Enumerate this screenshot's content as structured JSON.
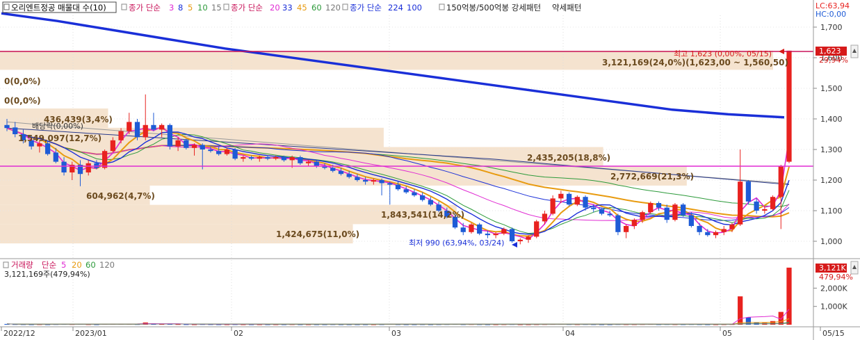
{
  "legend_top": {
    "item1": "오리엔트정공 매물대 수(10)",
    "item2_label": "종가 단순",
    "item2_periods": [
      "3",
      "8",
      "5",
      "10",
      "15"
    ],
    "item3_label": "종가 단순",
    "item3_periods": [
      "20",
      "33",
      "45",
      "60",
      "120"
    ],
    "item4_label": "종가 단순",
    "item4_periods": [
      "224",
      "100"
    ],
    "item5": "150억봉/500억봉 강세패턴",
    "item6": "약세패턴"
  },
  "top_right": {
    "lc": "LC:63,94",
    "hc": "HC:0,00"
  },
  "right_badge": {
    "price": "1,623",
    "pct": "29,94%"
  },
  "annotations": {
    "high": "최고 1,623 (0,00%, 05/15)",
    "low": "최저 990 (63,94%, 03/24)",
    "dividend": "배당락(0,00%)"
  },
  "volume_profile_labels": [
    "3,121,169(24,0%)(1,623,00 ~ 1,560,50)",
    "0(0,0%)",
    "0(0,0%)",
    "436,439(3,4%)",
    "1,549,097(12,7%)",
    "2,435,205(18,8%)",
    "2,772,669(21,3%)",
    "604,962(4,7%)",
    "1,843,541(14,2%)",
    "1,424,675(11,0%)"
  ],
  "volume_legend": {
    "title": "거래량",
    "label": "단순",
    "periods": [
      "5",
      "20",
      "60",
      "120"
    ],
    "value": "3,121,169주(479,94%)"
  },
  "volume_badge": {
    "value": "3,121K",
    "pct": "479,94%"
  },
  "x_labels": [
    "2022/12",
    "2023/01",
    "02",
    "03",
    "04",
    "05",
    "05/15"
  ],
  "colors": {
    "up": "#e8221f",
    "down": "#1e5bd6",
    "ma224": "#1a2fd8",
    "resistance": "#c8145a",
    "support": "#e02cd3",
    "profile": "#f5e3cf",
    "axis_text": "#333333"
  },
  "chart_data": {
    "type": "candlestick",
    "price_axis": {
      "ticks": [
        1000,
        1100,
        1200,
        1300,
        1400,
        1500,
        1600,
        1700
      ],
      "labels": [
        "1,000",
        "1,100",
        "1,200",
        "1,300",
        "1,400",
        "1,500",
        "1,600",
        "1,700"
      ],
      "ylim": [
        955,
        1755
      ]
    },
    "volume_axis": {
      "ticks": [
        1000,
        2000
      ],
      "labels": [
        "1,000K",
        "2,000K"
      ],
      "unit": "K"
    },
    "resistance_level": 1623,
    "support_level": 1245,
    "ma224_series": [
      1745,
      1720,
      1690,
      1660,
      1630,
      1605,
      1580,
      1555,
      1530,
      1505,
      1480,
      1455,
      1430,
      1415,
      1405
    ],
    "volume_profile": [
      {
        "low": 1560.5,
        "high": 1623,
        "vol": 3121169
      },
      {
        "low": 1497,
        "high": 1560,
        "vol": 0
      },
      {
        "low": 1434,
        "high": 1497,
        "vol": 0
      },
      {
        "low": 1371,
        "high": 1434,
        "vol": 436439
      },
      {
        "low": 1308,
        "high": 1371,
        "vol": 1549097
      },
      {
        "low": 1245,
        "high": 1308,
        "vol": 2435205
      },
      {
        "low": 1182,
        "high": 1245,
        "vol": 2772669
      },
      {
        "low": 1119,
        "high": 1182,
        "vol": 604962
      },
      {
        "low": 1056,
        "high": 1119,
        "vol": 1843541
      },
      {
        "low": 993,
        "high": 1056,
        "vol": 1424675
      }
    ],
    "candles": [
      {
        "o": 1380,
        "h": 1400,
        "l": 1360,
        "c": 1370
      },
      {
        "o": 1372,
        "h": 1390,
        "l": 1340,
        "c": 1350
      },
      {
        "o": 1350,
        "h": 1365,
        "l": 1320,
        "c": 1330
      },
      {
        "o": 1330,
        "h": 1345,
        "l": 1300,
        "c": 1310
      },
      {
        "o": 1310,
        "h": 1330,
        "l": 1290,
        "c": 1320
      },
      {
        "o": 1320,
        "h": 1330,
        "l": 1280,
        "c": 1285
      },
      {
        "o": 1290,
        "h": 1305,
        "l": 1255,
        "c": 1260
      },
      {
        "o": 1260,
        "h": 1275,
        "l": 1215,
        "c": 1225
      },
      {
        "o": 1225,
        "h": 1260,
        "l": 1200,
        "c": 1250
      },
      {
        "o": 1250,
        "h": 1265,
        "l": 1180,
        "c": 1220
      },
      {
        "o": 1225,
        "h": 1265,
        "l": 1215,
        "c": 1255
      },
      {
        "o": 1255,
        "h": 1265,
        "l": 1235,
        "c": 1240
      },
      {
        "o": 1240,
        "h": 1300,
        "l": 1235,
        "c": 1295
      },
      {
        "o": 1295,
        "h": 1340,
        "l": 1290,
        "c": 1330
      },
      {
        "o": 1330,
        "h": 1370,
        "l": 1320,
        "c": 1360
      },
      {
        "o": 1360,
        "h": 1420,
        "l": 1350,
        "c": 1390
      },
      {
        "o": 1390,
        "h": 1400,
        "l": 1330,
        "c": 1340
      },
      {
        "o": 1340,
        "h": 1480,
        "l": 1330,
        "c": 1380
      },
      {
        "o": 1380,
        "h": 1420,
        "l": 1360,
        "c": 1365
      },
      {
        "o": 1365,
        "h": 1385,
        "l": 1340,
        "c": 1380
      },
      {
        "o": 1380,
        "h": 1385,
        "l": 1300,
        "c": 1310
      },
      {
        "o": 1310,
        "h": 1340,
        "l": 1295,
        "c": 1330
      },
      {
        "o": 1330,
        "h": 1335,
        "l": 1300,
        "c": 1305
      },
      {
        "o": 1305,
        "h": 1320,
        "l": 1280,
        "c": 1315
      },
      {
        "o": 1315,
        "h": 1320,
        "l": 1235,
        "c": 1300
      },
      {
        "o": 1300,
        "h": 1310,
        "l": 1290,
        "c": 1295
      },
      {
        "o": 1295,
        "h": 1310,
        "l": 1280,
        "c": 1285
      },
      {
        "o": 1285,
        "h": 1305,
        "l": 1280,
        "c": 1300
      },
      {
        "o": 1300,
        "h": 1305,
        "l": 1265,
        "c": 1270
      },
      {
        "o": 1270,
        "h": 1280,
        "l": 1260,
        "c": 1275
      },
      {
        "o": 1275,
        "h": 1280,
        "l": 1265,
        "c": 1270
      },
      {
        "o": 1270,
        "h": 1280,
        "l": 1260,
        "c": 1275
      },
      {
        "o": 1275,
        "h": 1280,
        "l": 1265,
        "c": 1270
      },
      {
        "o": 1270,
        "h": 1280,
        "l": 1265,
        "c": 1275
      },
      {
        "o": 1275,
        "h": 1280,
        "l": 1260,
        "c": 1265
      },
      {
        "o": 1265,
        "h": 1280,
        "l": 1240,
        "c": 1275
      },
      {
        "o": 1275,
        "h": 1280,
        "l": 1250,
        "c": 1255
      },
      {
        "o": 1255,
        "h": 1265,
        "l": 1245,
        "c": 1260
      },
      {
        "o": 1260,
        "h": 1265,
        "l": 1240,
        "c": 1245
      },
      {
        "o": 1245,
        "h": 1255,
        "l": 1235,
        "c": 1240
      },
      {
        "o": 1240,
        "h": 1250,
        "l": 1225,
        "c": 1230
      },
      {
        "o": 1230,
        "h": 1240,
        "l": 1215,
        "c": 1220
      },
      {
        "o": 1220,
        "h": 1230,
        "l": 1205,
        "c": 1210
      },
      {
        "o": 1210,
        "h": 1220,
        "l": 1195,
        "c": 1200
      },
      {
        "o": 1200,
        "h": 1210,
        "l": 1185,
        "c": 1195
      },
      {
        "o": 1195,
        "h": 1205,
        "l": 1185,
        "c": 1200
      },
      {
        "o": 1200,
        "h": 1205,
        "l": 1150,
        "c": 1190
      },
      {
        "o": 1190,
        "h": 1195,
        "l": 1120,
        "c": 1185
      },
      {
        "o": 1185,
        "h": 1195,
        "l": 1165,
        "c": 1170
      },
      {
        "o": 1170,
        "h": 1180,
        "l": 1155,
        "c": 1160
      },
      {
        "o": 1160,
        "h": 1170,
        "l": 1145,
        "c": 1150
      },
      {
        "o": 1150,
        "h": 1160,
        "l": 1130,
        "c": 1135
      },
      {
        "o": 1135,
        "h": 1145,
        "l": 1115,
        "c": 1120
      },
      {
        "o": 1120,
        "h": 1130,
        "l": 1095,
        "c": 1100
      },
      {
        "o": 1100,
        "h": 1110,
        "l": 1075,
        "c": 1080
      },
      {
        "o": 1080,
        "h": 1090,
        "l": 1040,
        "c": 1045
      },
      {
        "o": 1045,
        "h": 1060,
        "l": 1020,
        "c": 1030
      },
      {
        "o": 1030,
        "h": 1060,
        "l": 1025,
        "c": 1055
      },
      {
        "o": 1055,
        "h": 1060,
        "l": 1020,
        "c": 1025
      },
      {
        "o": 1025,
        "h": 1035,
        "l": 1010,
        "c": 1020
      },
      {
        "o": 1020,
        "h": 1030,
        "l": 1010,
        "c": 1025
      },
      {
        "o": 1025,
        "h": 1045,
        "l": 1020,
        "c": 1040
      },
      {
        "o": 1040,
        "h": 1045,
        "l": 995,
        "c": 1000
      },
      {
        "o": 1000,
        "h": 1010,
        "l": 990,
        "c": 1005
      },
      {
        "o": 1005,
        "h": 1020,
        "l": 995,
        "c": 1015
      },
      {
        "o": 1015,
        "h": 1070,
        "l": 1010,
        "c": 1065
      },
      {
        "o": 1065,
        "h": 1100,
        "l": 1055,
        "c": 1090
      },
      {
        "o": 1090,
        "h": 1150,
        "l": 1085,
        "c": 1140
      },
      {
        "o": 1140,
        "h": 1165,
        "l": 1125,
        "c": 1155
      },
      {
        "o": 1155,
        "h": 1160,
        "l": 1115,
        "c": 1120
      },
      {
        "o": 1120,
        "h": 1150,
        "l": 1115,
        "c": 1145
      },
      {
        "o": 1145,
        "h": 1150,
        "l": 1100,
        "c": 1110
      },
      {
        "o": 1110,
        "h": 1120,
        "l": 1095,
        "c": 1105
      },
      {
        "o": 1105,
        "h": 1110,
        "l": 1085,
        "c": 1090
      },
      {
        "o": 1090,
        "h": 1100,
        "l": 1080,
        "c": 1085
      },
      {
        "o": 1085,
        "h": 1090,
        "l": 1020,
        "c": 1030
      },
      {
        "o": 1030,
        "h": 1055,
        "l": 1010,
        "c": 1050
      },
      {
        "o": 1050,
        "h": 1075,
        "l": 1040,
        "c": 1070
      },
      {
        "o": 1070,
        "h": 1100,
        "l": 1060,
        "c": 1095
      },
      {
        "o": 1095,
        "h": 1130,
        "l": 1090,
        "c": 1125
      },
      {
        "o": 1125,
        "h": 1130,
        "l": 1100,
        "c": 1110
      },
      {
        "o": 1110,
        "h": 1120,
        "l": 1060,
        "c": 1070
      },
      {
        "o": 1070,
        "h": 1125,
        "l": 1065,
        "c": 1120
      },
      {
        "o": 1120,
        "h": 1125,
        "l": 1080,
        "c": 1085
      },
      {
        "o": 1085,
        "h": 1095,
        "l": 1045,
        "c": 1050
      },
      {
        "o": 1050,
        "h": 1060,
        "l": 1020,
        "c": 1030
      },
      {
        "o": 1030,
        "h": 1040,
        "l": 1015,
        "c": 1020
      },
      {
        "o": 1020,
        "h": 1035,
        "l": 1010,
        "c": 1030
      },
      {
        "o": 1030,
        "h": 1050,
        "l": 1020,
        "c": 1040
      },
      {
        "o": 1040,
        "h": 1060,
        "l": 1030,
        "c": 1055
      },
      {
        "o": 1055,
        "h": 1300,
        "l": 1050,
        "c": 1195
      },
      {
        "o": 1195,
        "h": 1200,
        "l": 1120,
        "c": 1130
      },
      {
        "o": 1130,
        "h": 1140,
        "l": 1090,
        "c": 1100
      },
      {
        "o": 1100,
        "h": 1115,
        "l": 1090,
        "c": 1105
      },
      {
        "o": 1105,
        "h": 1150,
        "l": 1100,
        "c": 1145
      },
      {
        "o": 1145,
        "h": 1250,
        "l": 1040,
        "c": 1245
      },
      {
        "o": 1260,
        "h": 1623,
        "l": 1255,
        "c": 1623
      }
    ],
    "volume_k": [
      40,
      30,
      25,
      20,
      25,
      20,
      30,
      35,
      30,
      40,
      25,
      20,
      40,
      50,
      45,
      40,
      30,
      120,
      45,
      35,
      40,
      30,
      25,
      20,
      30,
      25,
      20,
      20,
      25,
      20,
      20,
      20,
      20,
      20,
      20,
      25,
      20,
      20,
      20,
      20,
      25,
      20,
      20,
      20,
      20,
      20,
      25,
      40,
      25,
      20,
      20,
      25,
      20,
      25,
      30,
      35,
      25,
      30,
      25,
      20,
      20,
      25,
      30,
      20,
      20,
      25,
      30,
      35,
      40,
      30,
      25,
      30,
      25,
      20,
      20,
      30,
      25,
      25,
      30,
      35,
      25,
      30,
      25,
      25,
      30,
      25,
      20,
      20,
      25,
      30,
      1550,
      400,
      120,
      100,
      200,
      700,
      3121
    ]
  }
}
